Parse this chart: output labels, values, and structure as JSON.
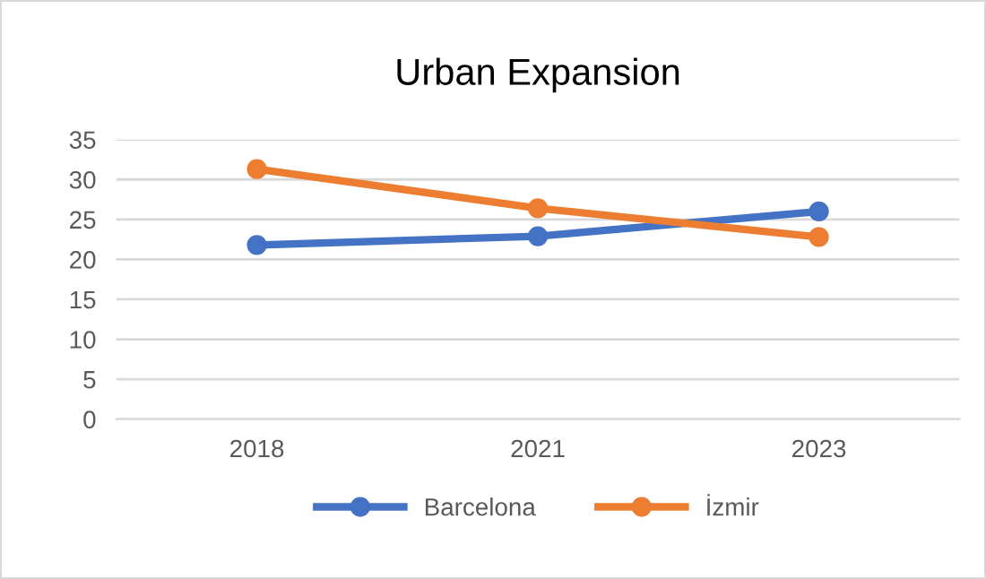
{
  "chart_data": {
    "type": "line",
    "title": "Urban Expansion",
    "categories": [
      "2018",
      "2021",
      "2023"
    ],
    "series": [
      {
        "name": "Barcelona",
        "color": "#4472c4",
        "values": [
          21.8,
          22.9,
          26.0
        ]
      },
      {
        "name": "İzmir",
        "color": "#ed7d31",
        "values": [
          31.3,
          26.4,
          22.8
        ]
      }
    ],
    "ylim": [
      0,
      35
    ],
    "yticks": [
      0,
      5,
      10,
      15,
      20,
      25,
      30,
      35
    ],
    "grid": "y",
    "legend": "bottom",
    "marker": "circle",
    "line_style": "solid"
  }
}
